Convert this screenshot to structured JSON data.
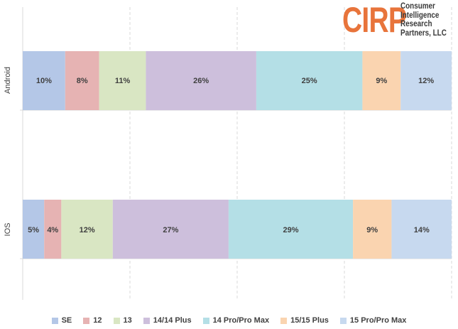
{
  "chart_data": {
    "type": "bar",
    "orientation": "horizontal-stacked-100",
    "categories": [
      "Android",
      "IOS"
    ],
    "series": [
      {
        "name": "SE",
        "values": [
          10,
          5
        ],
        "labels": [
          "10%",
          "5%"
        ],
        "color": "#b4c7e7"
      },
      {
        "name": "12",
        "values": [
          8,
          4
        ],
        "labels": [
          "8%",
          "4%"
        ],
        "color": "#e6b3b3"
      },
      {
        "name": "13",
        "values": [
          11,
          12
        ],
        "labels": [
          "11%",
          "12%"
        ],
        "color": "#d9e6c3"
      },
      {
        "name": "14/14 Plus",
        "values": [
          26,
          27
        ],
        "labels": [
          "26%",
          "27%"
        ],
        "color": "#cdbfdc"
      },
      {
        "name": "14 Pro/Pro Max",
        "values": [
          25,
          29
        ],
        "labels": [
          "25%",
          "29%"
        ],
        "color": "#b4dfe6"
      },
      {
        "name": "15/15 Plus",
        "values": [
          9,
          9
        ],
        "labels": [
          "9%",
          "9%"
        ],
        "color": "#fad4b0"
      },
      {
        "name": "15 Pro/Pro Max",
        "values": [
          12,
          14
        ],
        "labels": [
          "12%",
          "14%"
        ],
        "color": "#c7d9ef"
      }
    ],
    "xlim": [
      0,
      100
    ],
    "grid": true,
    "legend_position": "bottom"
  },
  "logo": {
    "mark": "CIRP",
    "lines": [
      "Consumer",
      "Intelligence",
      "Research",
      "Partners, LLC"
    ],
    "mark_color": "#e8743b",
    "text_color": "#3a3a3a"
  }
}
